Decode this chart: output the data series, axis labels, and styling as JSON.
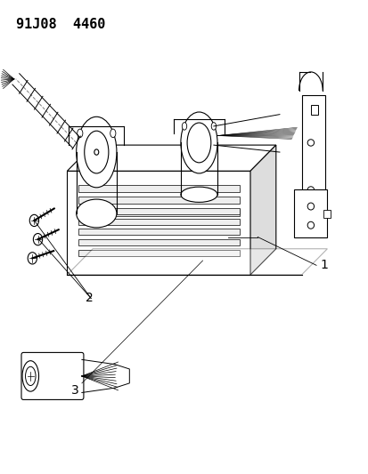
{
  "title_text": "91J08  4460",
  "bg_color": "#ffffff",
  "line_color": "#000000",
  "title_fontsize": 11,
  "label_fontsize": 10,
  "fig_width": 4.14,
  "fig_height": 5.33,
  "dpi": 100,
  "labels": {
    "1": [
      0.87,
      0.44
    ],
    "2": [
      0.23,
      0.37
    ],
    "3": [
      0.19,
      0.175
    ]
  }
}
